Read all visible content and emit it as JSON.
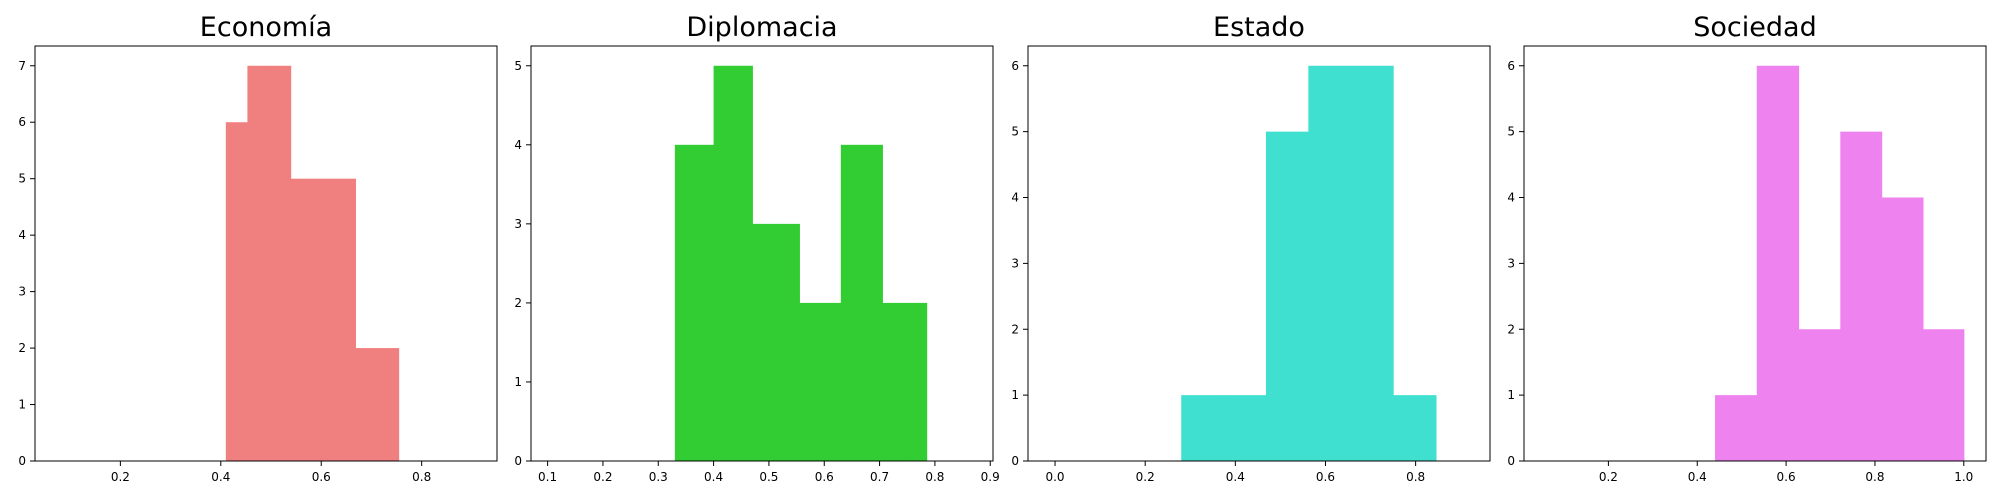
{
  "chart_data": [
    {
      "type": "bar",
      "title": "Economía",
      "color": "#F08080",
      "bins": [
        {
          "x0": 0.41,
          "x1": 0.453,
          "count": 6
        },
        {
          "x0": 0.453,
          "x1": 0.496,
          "count": 7
        },
        {
          "x0": 0.496,
          "x1": 0.539,
          "count": 7
        },
        {
          "x0": 0.539,
          "x1": 0.582,
          "count": 5
        },
        {
          "x0": 0.582,
          "x1": 0.625,
          "count": 5
        },
        {
          "x0": 0.625,
          "x1": 0.668,
          "count": 5
        },
        {
          "x0": 0.668,
          "x1": 0.711,
          "count": 2
        },
        {
          "x0": 0.711,
          "x1": 0.754,
          "count": 2
        }
      ],
      "xlim": [
        0.03,
        0.95
      ],
      "ylim": [
        0,
        7.35
      ],
      "xticks": [
        0.2,
        0.4,
        0.6,
        0.8
      ],
      "xtick_labels": [
        "0.2",
        "0.4",
        "0.6",
        "0.8"
      ],
      "yticks": [
        0,
        1,
        2,
        3,
        4,
        5,
        6,
        7
      ],
      "ytick_labels": [
        "0",
        "1",
        "2",
        "3",
        "4",
        "5",
        "6",
        "7"
      ]
    },
    {
      "type": "bar",
      "title": "Diplomacia",
      "color": "#32CD32",
      "bins": [
        {
          "x0": 0.33,
          "x1": 0.365,
          "count": 4
        },
        {
          "x0": 0.365,
          "x1": 0.4,
          "count": 4
        },
        {
          "x0": 0.4,
          "x1": 0.435,
          "count": 5
        },
        {
          "x0": 0.435,
          "x1": 0.47,
          "count": 5
        },
        {
          "x0": 0.47,
          "x1": 0.515,
          "count": 3
        },
        {
          "x0": 0.515,
          "x1": 0.555,
          "count": 3
        },
        {
          "x0": 0.555,
          "x1": 0.595,
          "count": 2
        },
        {
          "x0": 0.595,
          "x1": 0.63,
          "count": 2
        },
        {
          "x0": 0.63,
          "x1": 0.665,
          "count": 4
        },
        {
          "x0": 0.665,
          "x1": 0.705,
          "count": 4
        },
        {
          "x0": 0.705,
          "x1": 0.745,
          "count": 2
        },
        {
          "x0": 0.745,
          "x1": 0.785,
          "count": 2
        }
      ],
      "xlim": [
        0.07,
        0.905
      ],
      "ylim": [
        0,
        5.25
      ],
      "xticks": [
        0.1,
        0.2,
        0.3,
        0.4,
        0.5,
        0.6,
        0.7,
        0.8,
        0.9
      ],
      "xtick_labels": [
        "0.1",
        "0.2",
        "0.3",
        "0.4",
        "0.5",
        "0.6",
        "0.7",
        "0.8",
        "0.9"
      ],
      "yticks": [
        0,
        1,
        2,
        3,
        4,
        5
      ],
      "ytick_labels": [
        "0",
        "1",
        "2",
        "3",
        "4",
        "5"
      ]
    },
    {
      "type": "bar",
      "title": "Estado",
      "color": "#40E0D0",
      "bins": [
        {
          "x0": 0.28,
          "x1": 0.374,
          "count": 1
        },
        {
          "x0": 0.374,
          "x1": 0.468,
          "count": 1
        },
        {
          "x0": 0.468,
          "x1": 0.515,
          "count": 5
        },
        {
          "x0": 0.515,
          "x1": 0.562,
          "count": 5
        },
        {
          "x0": 0.562,
          "x1": 0.609,
          "count": 6
        },
        {
          "x0": 0.609,
          "x1": 0.656,
          "count": 6
        },
        {
          "x0": 0.656,
          "x1": 0.703,
          "count": 6
        },
        {
          "x0": 0.703,
          "x1": 0.75,
          "count": 6
        },
        {
          "x0": 0.75,
          "x1": 0.8,
          "count": 1
        },
        {
          "x0": 0.8,
          "x1": 0.845,
          "count": 1
        }
      ],
      "xlim": [
        -0.06,
        0.965
      ],
      "ylim": [
        0,
        6.3
      ],
      "xticks": [
        0.0,
        0.2,
        0.4,
        0.6,
        0.8
      ],
      "xtick_labels": [
        "0.0",
        "0.2",
        "0.4",
        "0.6",
        "0.8"
      ],
      "yticks": [
        0,
        1,
        2,
        3,
        4,
        5,
        6
      ],
      "ytick_labels": [
        "0",
        "1",
        "2",
        "3",
        "4",
        "5",
        "6"
      ]
    },
    {
      "type": "bar",
      "title": "Sociedad",
      "color": "#EE82EE",
      "bins": [
        {
          "x0": 0.44,
          "x1": 0.487,
          "count": 1
        },
        {
          "x0": 0.487,
          "x1": 0.534,
          "count": 1
        },
        {
          "x0": 0.534,
          "x1": 0.581,
          "count": 6
        },
        {
          "x0": 0.581,
          "x1": 0.628,
          "count": 6
        },
        {
          "x0": 0.628,
          "x1": 0.675,
          "count": 2
        },
        {
          "x0": 0.675,
          "x1": 0.722,
          "count": 2
        },
        {
          "x0": 0.722,
          "x1": 0.769,
          "count": 5
        },
        {
          "x0": 0.769,
          "x1": 0.815,
          "count": 5
        },
        {
          "x0": 0.815,
          "x1": 0.862,
          "count": 4
        },
        {
          "x0": 0.862,
          "x1": 0.908,
          "count": 4
        },
        {
          "x0": 0.908,
          "x1": 0.954,
          "count": 2
        },
        {
          "x0": 0.954,
          "x1": 1.0,
          "count": 2
        }
      ],
      "xlim": [
        0.01,
        1.05
      ],
      "ylim": [
        0,
        6.3
      ],
      "xticks": [
        0.2,
        0.4,
        0.6,
        0.8,
        1.0
      ],
      "xtick_labels": [
        "0.2",
        "0.4",
        "0.6",
        "0.8",
        "1.0"
      ],
      "yticks": [
        0,
        1,
        2,
        3,
        4,
        5,
        6
      ],
      "ytick_labels": [
        "0",
        "1",
        "2",
        "3",
        "4",
        "5",
        "6"
      ]
    }
  ]
}
